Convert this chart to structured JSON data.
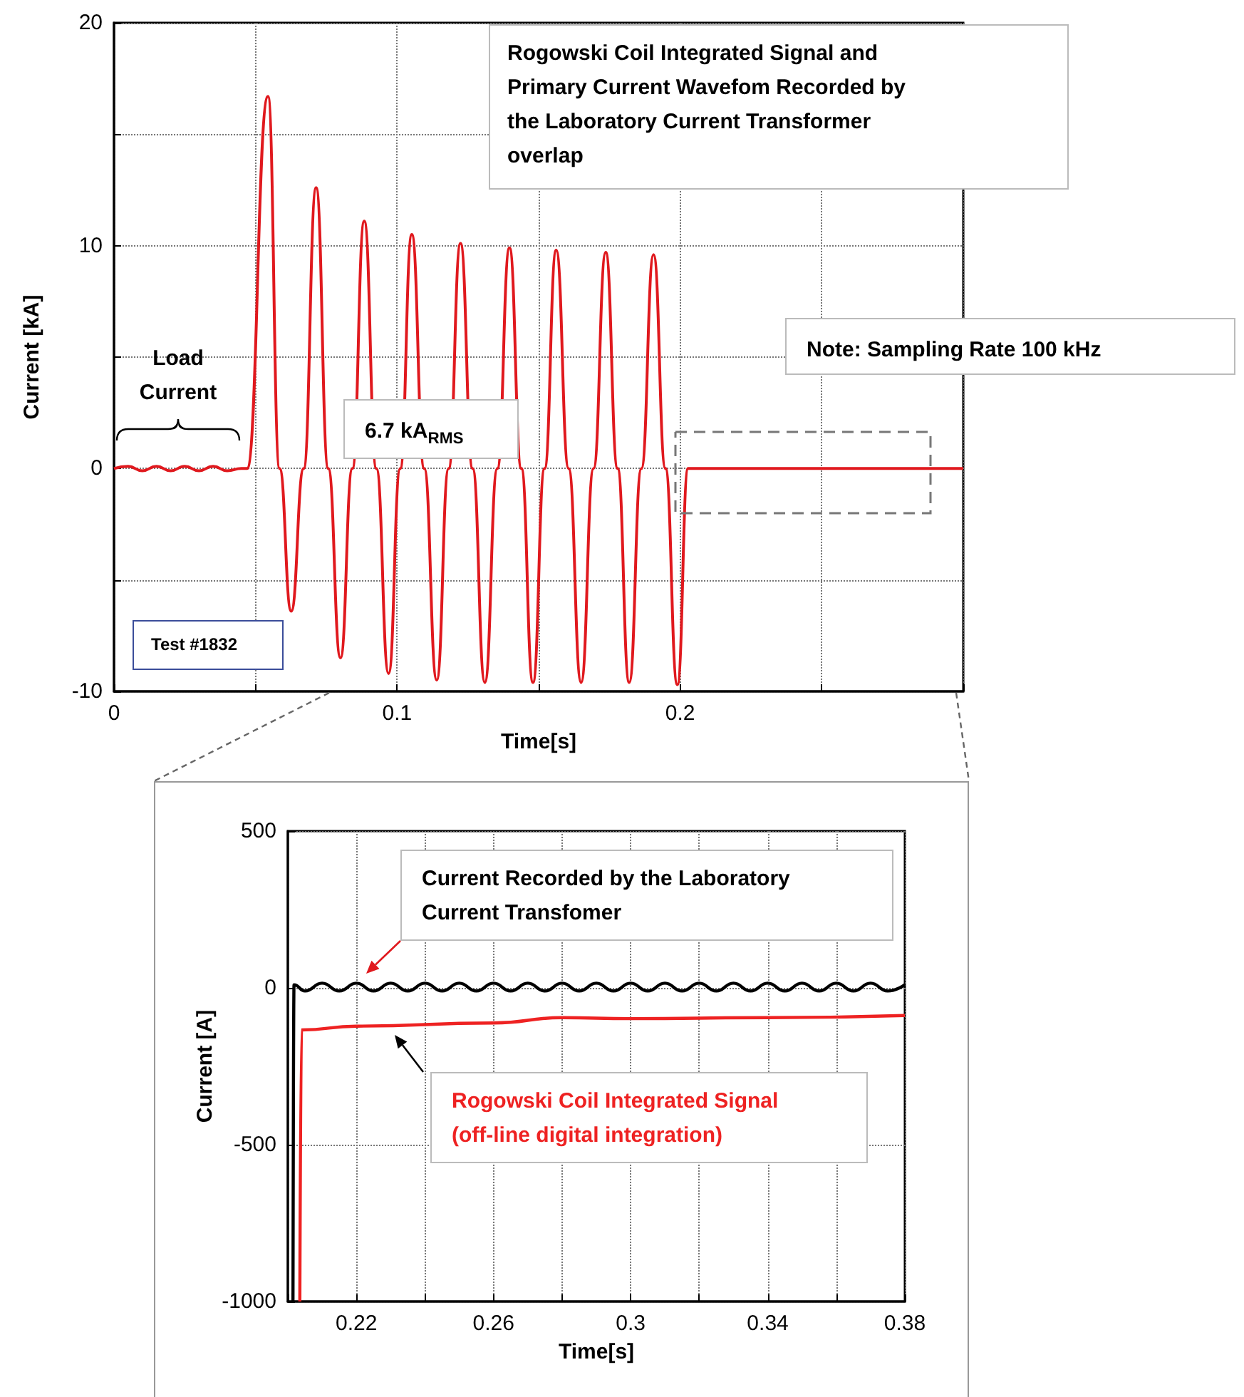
{
  "chart_data": [
    {
      "type": "line",
      "xlabel": "Time[s]",
      "ylabel": "Current [kA]",
      "xlim": [
        0,
        0.3
      ],
      "xticks": [
        0,
        {
          "value": 0.05,
          "label": null
        },
        0.1,
        {
          "value": 0.15,
          "label": null
        },
        0.2,
        {
          "value": 0.25,
          "label": null
        },
        {
          "value": 0.3,
          "label": null
        }
      ],
      "ylim": [
        -10,
        20
      ],
      "yticks": [
        -10,
        {
          "value": -5,
          "label": null
        },
        0,
        {
          "value": 5,
          "label": null
        },
        10,
        {
          "value": 15,
          "label": null
        },
        20
      ],
      "grid": true,
      "annotations": [
        "Rogowski Coil Integrated Signal and Primary Current Wavefom Recorded by the Laboratory Current Transformer overlap",
        "Note: Sampling Rate 100 kHz",
        "6.7 kA$_{RMS}$",
        "Load Current",
        "Test #1832"
      ],
      "series": [
        {
          "color": "#e0191e",
          "x": [
            0,
            0.005,
            0.01,
            0.015,
            0.02,
            0.025,
            0.03,
            0.035,
            0.04,
            0.045,
            0.047,
            0.0544,
            0.0585,
            0.0626,
            0.067,
            0.0714,
            0.0757,
            0.08,
            0.0842,
            0.0884,
            0.0927,
            0.097,
            0.1011,
            0.1052,
            0.1096,
            0.114,
            0.1182,
            0.1224,
            0.1267,
            0.131,
            0.1354,
            0.1397,
            0.1439,
            0.148,
            0.1521,
            0.1562,
            0.1606,
            0.165,
            0.1694,
            0.1737,
            0.1779,
            0.182,
            0.1863,
            0.1906,
            0.1948,
            0.199,
            0.2028,
            0.3
          ],
          "values": [
            0,
            0.1,
            -0.1,
            0.1,
            -0.1,
            0.1,
            -0.1,
            0.1,
            -0.1,
            0,
            0,
            16.7,
            0,
            -6.4,
            0,
            12.6,
            0,
            -8.5,
            0,
            11.1,
            0,
            -9.2,
            0,
            10.5,
            0,
            -9.5,
            0,
            10.1,
            0,
            -9.6,
            0,
            9.9,
            0,
            -9.6,
            0,
            9.8,
            0,
            -9.6,
            0,
            9.7,
            0,
            -9.6,
            0,
            9.6,
            0,
            -9.7,
            0,
            0
          ]
        }
      ]
    },
    {
      "type": "line",
      "xlabel": "Time[s]",
      "ylabel": "Current [A]",
      "xlim": [
        0.2,
        0.38
      ],
      "xticks": [
        {
          "value": 0.2,
          "label": null
        },
        0.22,
        {
          "value": 0.24,
          "label": null
        },
        0.26,
        {
          "value": 0.28,
          "label": null
        },
        0.3,
        {
          "value": 0.32,
          "label": null
        },
        0.34,
        {
          "value": 0.36,
          "label": null
        },
        0.38
      ],
      "ylim": [
        -1000,
        500
      ],
      "yticks": [
        -1000,
        -500,
        0,
        500
      ],
      "grid": true,
      "series": [
        {
          "name": "Current Recorded by the Laboratory Current Transfomer",
          "color": "#000000",
          "x": [
            0.2015,
            0.2018,
            0.205,
            0.21,
            0.215,
            0.22,
            0.225,
            0.23,
            0.235,
            0.24,
            0.245,
            0.25,
            0.255,
            0.26,
            0.265,
            0.27,
            0.275,
            0.28,
            0.285,
            0.29,
            0.295,
            0.3,
            0.305,
            0.31,
            0.315,
            0.32,
            0.325,
            0.33,
            0.335,
            0.34,
            0.345,
            0.35,
            0.355,
            0.36,
            0.365,
            0.37,
            0.375,
            0.38
          ],
          "values": [
            -1000,
            10,
            -10,
            15,
            -10,
            15,
            -10,
            15,
            -10,
            15,
            -10,
            15,
            -10,
            15,
            -10,
            15,
            -10,
            15,
            -10,
            15,
            -10,
            15,
            -10,
            15,
            -10,
            15,
            -10,
            15,
            -10,
            15,
            -10,
            15,
            -10,
            15,
            -10,
            15,
            -10,
            10
          ]
        },
        {
          "name": "Rogowski Coil Integrated Signal (off-line digital integration)",
          "color": "#ee2222",
          "x": [
            0.2035,
            0.204,
            0.22,
            0.26,
            0.28,
            0.3,
            0.34,
            0.38
          ],
          "values": [
            -1000,
            -134,
            -122,
            -112,
            -95,
            -98,
            -95,
            -88
          ]
        }
      ]
    }
  ]
}
